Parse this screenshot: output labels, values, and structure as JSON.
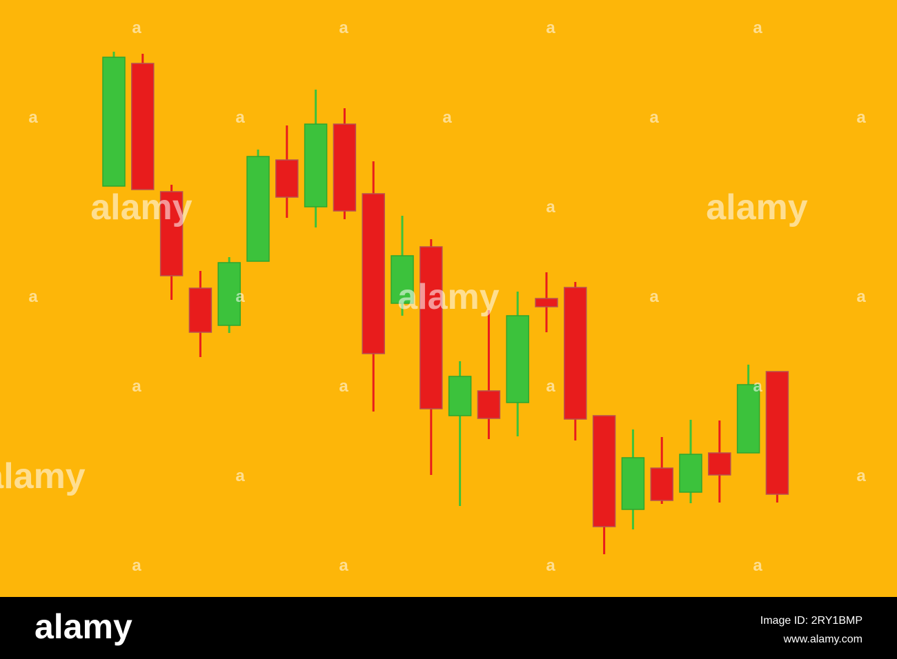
{
  "chart_data": {
    "type": "candlestick",
    "open": [
      596,
      774,
      588,
      448,
      394,
      487,
      634,
      566,
      686,
      585,
      426,
      508,
      263,
      299,
      282,
      433,
      449,
      263,
      127,
      187,
      152,
      209,
      209,
      327
    ],
    "high": [
      791,
      788,
      598,
      473,
      493,
      649,
      684,
      736,
      709,
      632,
      553,
      519,
      342,
      416,
      443,
      471,
      457,
      263,
      243,
      232,
      257,
      256,
      337,
      327
    ],
    "low": [
      596,
      591,
      431,
      348,
      383,
      487,
      550,
      536,
      548,
      269,
      408,
      177,
      132,
      229,
      233,
      384,
      227,
      62,
      98,
      135,
      136,
      137,
      209,
      137
    ],
    "close": [
      783,
      591,
      466,
      384,
      485,
      639,
      580,
      686,
      560,
      353,
      495,
      273,
      320,
      259,
      408,
      421,
      258,
      102,
      202,
      140,
      207,
      177,
      308,
      149
    ],
    "up_color": "#3cc23c",
    "down_color": "#e81c1c",
    "ylim": [
      0,
      866
    ]
  },
  "watermark": {
    "word": "alamy",
    "letter": "a"
  },
  "footer": {
    "logo": "alamy",
    "image_id": "Image ID: 2RY1BMP",
    "url": "www.alamy.com"
  }
}
